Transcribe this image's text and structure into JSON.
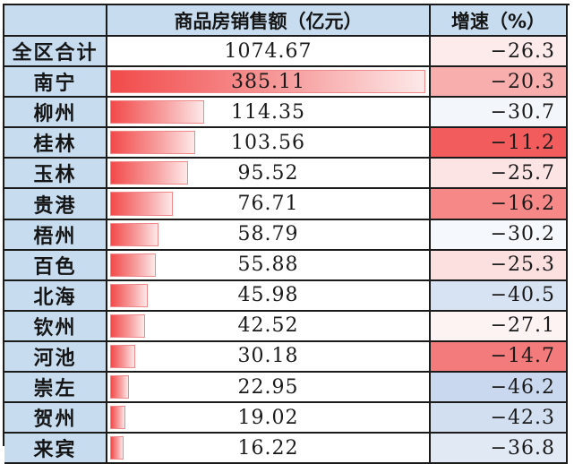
{
  "headers": {
    "region": "",
    "sales": "商品房销售额（亿元）",
    "growth": "增速（%）"
  },
  "colors": {
    "header_bg": "#c7dcef",
    "bar_color": "#f24a4a",
    "positive_growth_color": "#f25c5c",
    "negative_growth_color": "#c9d8ee"
  },
  "rows": [
    {
      "name": "全区合计",
      "sales": "1074.67",
      "growth": "-26.3"
    },
    {
      "name": "南宁",
      "sales": "385.11",
      "growth": "-20.3"
    },
    {
      "name": "柳州",
      "sales": "114.35",
      "growth": "-30.7"
    },
    {
      "name": "桂林",
      "sales": "103.56",
      "growth": "-11.2"
    },
    {
      "name": "玉林",
      "sales": "95.52",
      "growth": "-25.7"
    },
    {
      "name": "贵港",
      "sales": "76.71",
      "growth": "-16.2"
    },
    {
      "name": "梧州",
      "sales": "58.79",
      "growth": "-30.2"
    },
    {
      "name": "百色",
      "sales": "55.88",
      "growth": "-25.3"
    },
    {
      "name": "北海",
      "sales": "45.98",
      "growth": "-40.5"
    },
    {
      "name": "钦州",
      "sales": "42.52",
      "growth": "-27.1"
    },
    {
      "name": "河池",
      "sales": "30.18",
      "growth": "-14.7"
    },
    {
      "name": "崇左",
      "sales": "22.95",
      "growth": "-46.2"
    },
    {
      "name": "贺州",
      "sales": "19.02",
      "growth": "-42.3"
    },
    {
      "name": "来宾",
      "sales": "16.22",
      "growth": "-36.8"
    }
  ]
}
